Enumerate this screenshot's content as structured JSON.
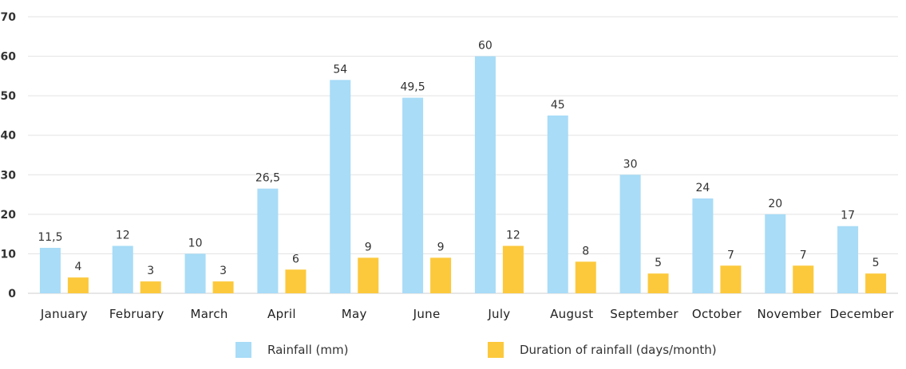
{
  "chart_data": {
    "type": "bar",
    "categories": [
      "January",
      "February",
      "March",
      "April",
      "May",
      "June",
      "July",
      "August",
      "September",
      "October",
      "November",
      "December"
    ],
    "series": [
      {
        "name": "Rainfall (mm)",
        "color": "#a8dcf7",
        "values": [
          11.5,
          12,
          10,
          26.5,
          54,
          49.5,
          60,
          45,
          30,
          24,
          20,
          17
        ],
        "labels": [
          "11,5",
          "12",
          "10",
          "26,5",
          "54",
          "49,5",
          "60",
          "45",
          "30",
          "24",
          "20",
          "17"
        ]
      },
      {
        "name": "Duration of rainfall (days/month)",
        "color": "#fcc93c",
        "values": [
          4,
          3,
          3,
          6,
          9,
          9,
          12,
          8,
          5,
          7,
          7,
          5
        ],
        "labels": [
          "4",
          "3",
          "3",
          "6",
          "9",
          "9",
          "12",
          "8",
          "5",
          "7",
          "7",
          "5"
        ]
      }
    ],
    "yticks": [
      "0",
      "10",
      "20",
      "30",
      "40",
      "50",
      "60",
      "70"
    ],
    "ylim": [
      0,
      70
    ],
    "grid": true,
    "legend_position": "bottom"
  }
}
